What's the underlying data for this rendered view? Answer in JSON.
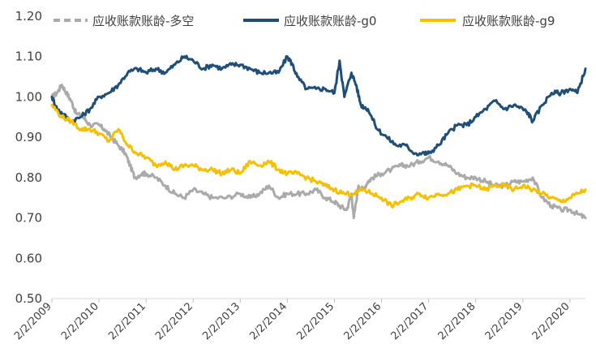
{
  "chart_data": {
    "type": "line",
    "title": "",
    "xlabel": "",
    "ylabel": "",
    "ylim": [
      0.5,
      1.2
    ],
    "yticks": [
      "0.50",
      "0.60",
      "0.70",
      "0.80",
      "0.90",
      "1.00",
      "1.10",
      "1.20"
    ],
    "xlim": [
      2009.09,
      2020.42
    ],
    "xticks": [
      "2/2/2009",
      "2/2/2010",
      "2/2/2011",
      "2/2/2012",
      "2/2/2013",
      "2/2/2014",
      "2/2/2015",
      "2/2/2016",
      "2/2/2017",
      "2/2/2018",
      "2/2/2019",
      "2/2/2020"
    ],
    "legend_position": "top",
    "series": [
      {
        "name": "应收账款账龄-多空",
        "color": "#aaaaaa",
        "style": "dashed-legend",
        "points": [
          [
            2009.09,
            1.0
          ],
          [
            2009.2,
            1.01
          ],
          [
            2009.3,
            1.03
          ],
          [
            2009.4,
            1.01
          ],
          [
            2009.5,
            0.99
          ],
          [
            2009.6,
            0.96
          ],
          [
            2009.75,
            0.95
          ],
          [
            2009.9,
            0.93
          ],
          [
            2010.09,
            0.93
          ],
          [
            2010.2,
            0.92
          ],
          [
            2010.35,
            0.9
          ],
          [
            2010.5,
            0.88
          ],
          [
            2010.65,
            0.86
          ],
          [
            2010.75,
            0.83
          ],
          [
            2010.85,
            0.8
          ],
          [
            2011.0,
            0.81
          ],
          [
            2011.09,
            0.81
          ],
          [
            2011.3,
            0.8
          ],
          [
            2011.5,
            0.78
          ],
          [
            2011.7,
            0.76
          ],
          [
            2011.9,
            0.75
          ],
          [
            2012.09,
            0.77
          ],
          [
            2012.3,
            0.76
          ],
          [
            2012.5,
            0.75
          ],
          [
            2012.8,
            0.75
          ],
          [
            2013.09,
            0.76
          ],
          [
            2013.3,
            0.75
          ],
          [
            2013.5,
            0.76
          ],
          [
            2013.7,
            0.78
          ],
          [
            2013.9,
            0.75
          ],
          [
            2014.09,
            0.76
          ],
          [
            2014.3,
            0.76
          ],
          [
            2014.5,
            0.76
          ],
          [
            2014.7,
            0.77
          ],
          [
            2014.9,
            0.75
          ],
          [
            2015.09,
            0.74
          ],
          [
            2015.2,
            0.73
          ],
          [
            2015.35,
            0.72
          ],
          [
            2015.45,
            0.76
          ],
          [
            2015.5,
            0.7
          ],
          [
            2015.6,
            0.78
          ],
          [
            2015.7,
            0.77
          ],
          [
            2015.8,
            0.79
          ],
          [
            2015.9,
            0.8
          ],
          [
            2016.09,
            0.81
          ],
          [
            2016.3,
            0.82
          ],
          [
            2016.5,
            0.83
          ],
          [
            2016.7,
            0.83
          ],
          [
            2016.9,
            0.84
          ],
          [
            2017.09,
            0.85
          ],
          [
            2017.3,
            0.84
          ],
          [
            2017.5,
            0.83
          ],
          [
            2017.7,
            0.81
          ],
          [
            2017.9,
            0.8
          ],
          [
            2018.09,
            0.8
          ],
          [
            2018.3,
            0.79
          ],
          [
            2018.5,
            0.78
          ],
          [
            2018.7,
            0.78
          ],
          [
            2018.9,
            0.79
          ],
          [
            2019.09,
            0.79
          ],
          [
            2019.3,
            0.8
          ],
          [
            2019.5,
            0.75
          ],
          [
            2019.7,
            0.73
          ],
          [
            2019.9,
            0.72
          ],
          [
            2020.09,
            0.72
          ],
          [
            2020.25,
            0.71
          ],
          [
            2020.42,
            0.7
          ]
        ]
      },
      {
        "name": "应收账款账龄-g0",
        "color": "#1f4e79",
        "style": "solid",
        "points": [
          [
            2009.09,
            1.0
          ],
          [
            2009.2,
            0.97
          ],
          [
            2009.3,
            0.96
          ],
          [
            2009.5,
            0.94
          ],
          [
            2009.7,
            0.95
          ],
          [
            2009.9,
            0.97
          ],
          [
            2010.09,
            1.0
          ],
          [
            2010.3,
            1.01
          ],
          [
            2010.5,
            1.03
          ],
          [
            2010.7,
            1.06
          ],
          [
            2010.9,
            1.07
          ],
          [
            2011.09,
            1.06
          ],
          [
            2011.3,
            1.07
          ],
          [
            2011.5,
            1.06
          ],
          [
            2011.7,
            1.08
          ],
          [
            2011.9,
            1.1
          ],
          [
            2012.09,
            1.09
          ],
          [
            2012.3,
            1.07
          ],
          [
            2012.5,
            1.08
          ],
          [
            2012.7,
            1.07
          ],
          [
            2012.9,
            1.08
          ],
          [
            2013.09,
            1.08
          ],
          [
            2013.3,
            1.07
          ],
          [
            2013.5,
            1.06
          ],
          [
            2013.7,
            1.06
          ],
          [
            2013.9,
            1.06
          ],
          [
            2014.09,
            1.1
          ],
          [
            2014.2,
            1.08
          ],
          [
            2014.3,
            1.05
          ],
          [
            2014.5,
            1.02
          ],
          [
            2014.7,
            1.02
          ],
          [
            2014.9,
            1.02
          ],
          [
            2015.09,
            1.01
          ],
          [
            2015.2,
            1.09
          ],
          [
            2015.3,
            1.0
          ],
          [
            2015.45,
            1.06
          ],
          [
            2015.55,
            1.03
          ],
          [
            2015.65,
            0.98
          ],
          [
            2015.8,
            0.97
          ],
          [
            2016.0,
            0.92
          ],
          [
            2016.2,
            0.9
          ],
          [
            2016.4,
            0.88
          ],
          [
            2016.6,
            0.88
          ],
          [
            2016.8,
            0.86
          ],
          [
            2017.0,
            0.86
          ],
          [
            2017.09,
            0.86
          ],
          [
            2017.3,
            0.88
          ],
          [
            2017.5,
            0.91
          ],
          [
            2017.7,
            0.93
          ],
          [
            2017.9,
            0.93
          ],
          [
            2018.09,
            0.95
          ],
          [
            2018.3,
            0.97
          ],
          [
            2018.5,
            0.99
          ],
          [
            2018.7,
            0.97
          ],
          [
            2018.9,
            0.98
          ],
          [
            2019.09,
            0.97
          ],
          [
            2019.2,
            0.96
          ],
          [
            2019.3,
            0.94
          ],
          [
            2019.5,
            0.98
          ],
          [
            2019.7,
            1.01
          ],
          [
            2019.9,
            1.01
          ],
          [
            2020.09,
            1.02
          ],
          [
            2020.25,
            1.01
          ],
          [
            2020.42,
            1.07
          ]
        ]
      },
      {
        "name": "应收账款账龄-g9",
        "color": "#f5c000",
        "style": "solid",
        "points": [
          [
            2009.09,
            0.98
          ],
          [
            2009.3,
            0.95
          ],
          [
            2009.5,
            0.94
          ],
          [
            2009.7,
            0.92
          ],
          [
            2009.9,
            0.92
          ],
          [
            2010.09,
            0.91
          ],
          [
            2010.3,
            0.89
          ],
          [
            2010.5,
            0.92
          ],
          [
            2010.7,
            0.88
          ],
          [
            2010.9,
            0.86
          ],
          [
            2011.09,
            0.85
          ],
          [
            2011.3,
            0.83
          ],
          [
            2011.5,
            0.84
          ],
          [
            2011.7,
            0.82
          ],
          [
            2011.9,
            0.83
          ],
          [
            2012.09,
            0.83
          ],
          [
            2012.3,
            0.82
          ],
          [
            2012.5,
            0.82
          ],
          [
            2012.7,
            0.81
          ],
          [
            2012.9,
            0.82
          ],
          [
            2013.09,
            0.81
          ],
          [
            2013.3,
            0.84
          ],
          [
            2013.5,
            0.83
          ],
          [
            2013.7,
            0.84
          ],
          [
            2013.9,
            0.82
          ],
          [
            2014.09,
            0.81
          ],
          [
            2014.3,
            0.81
          ],
          [
            2014.5,
            0.8
          ],
          [
            2014.7,
            0.79
          ],
          [
            2014.9,
            0.78
          ],
          [
            2015.09,
            0.77
          ],
          [
            2015.3,
            0.76
          ],
          [
            2015.5,
            0.76
          ],
          [
            2015.7,
            0.77
          ],
          [
            2015.9,
            0.76
          ],
          [
            2016.09,
            0.75
          ],
          [
            2016.3,
            0.73
          ],
          [
            2016.5,
            0.74
          ],
          [
            2016.7,
            0.75
          ],
          [
            2016.9,
            0.76
          ],
          [
            2017.09,
            0.75
          ],
          [
            2017.3,
            0.76
          ],
          [
            2017.5,
            0.76
          ],
          [
            2017.7,
            0.77
          ],
          [
            2017.9,
            0.78
          ],
          [
            2018.09,
            0.78
          ],
          [
            2018.3,
            0.77
          ],
          [
            2018.5,
            0.78
          ],
          [
            2018.7,
            0.78
          ],
          [
            2018.9,
            0.77
          ],
          [
            2019.09,
            0.78
          ],
          [
            2019.3,
            0.77
          ],
          [
            2019.5,
            0.76
          ],
          [
            2019.7,
            0.75
          ],
          [
            2019.9,
            0.74
          ],
          [
            2020.09,
            0.75
          ],
          [
            2020.25,
            0.76
          ],
          [
            2020.42,
            0.77
          ]
        ]
      }
    ]
  }
}
